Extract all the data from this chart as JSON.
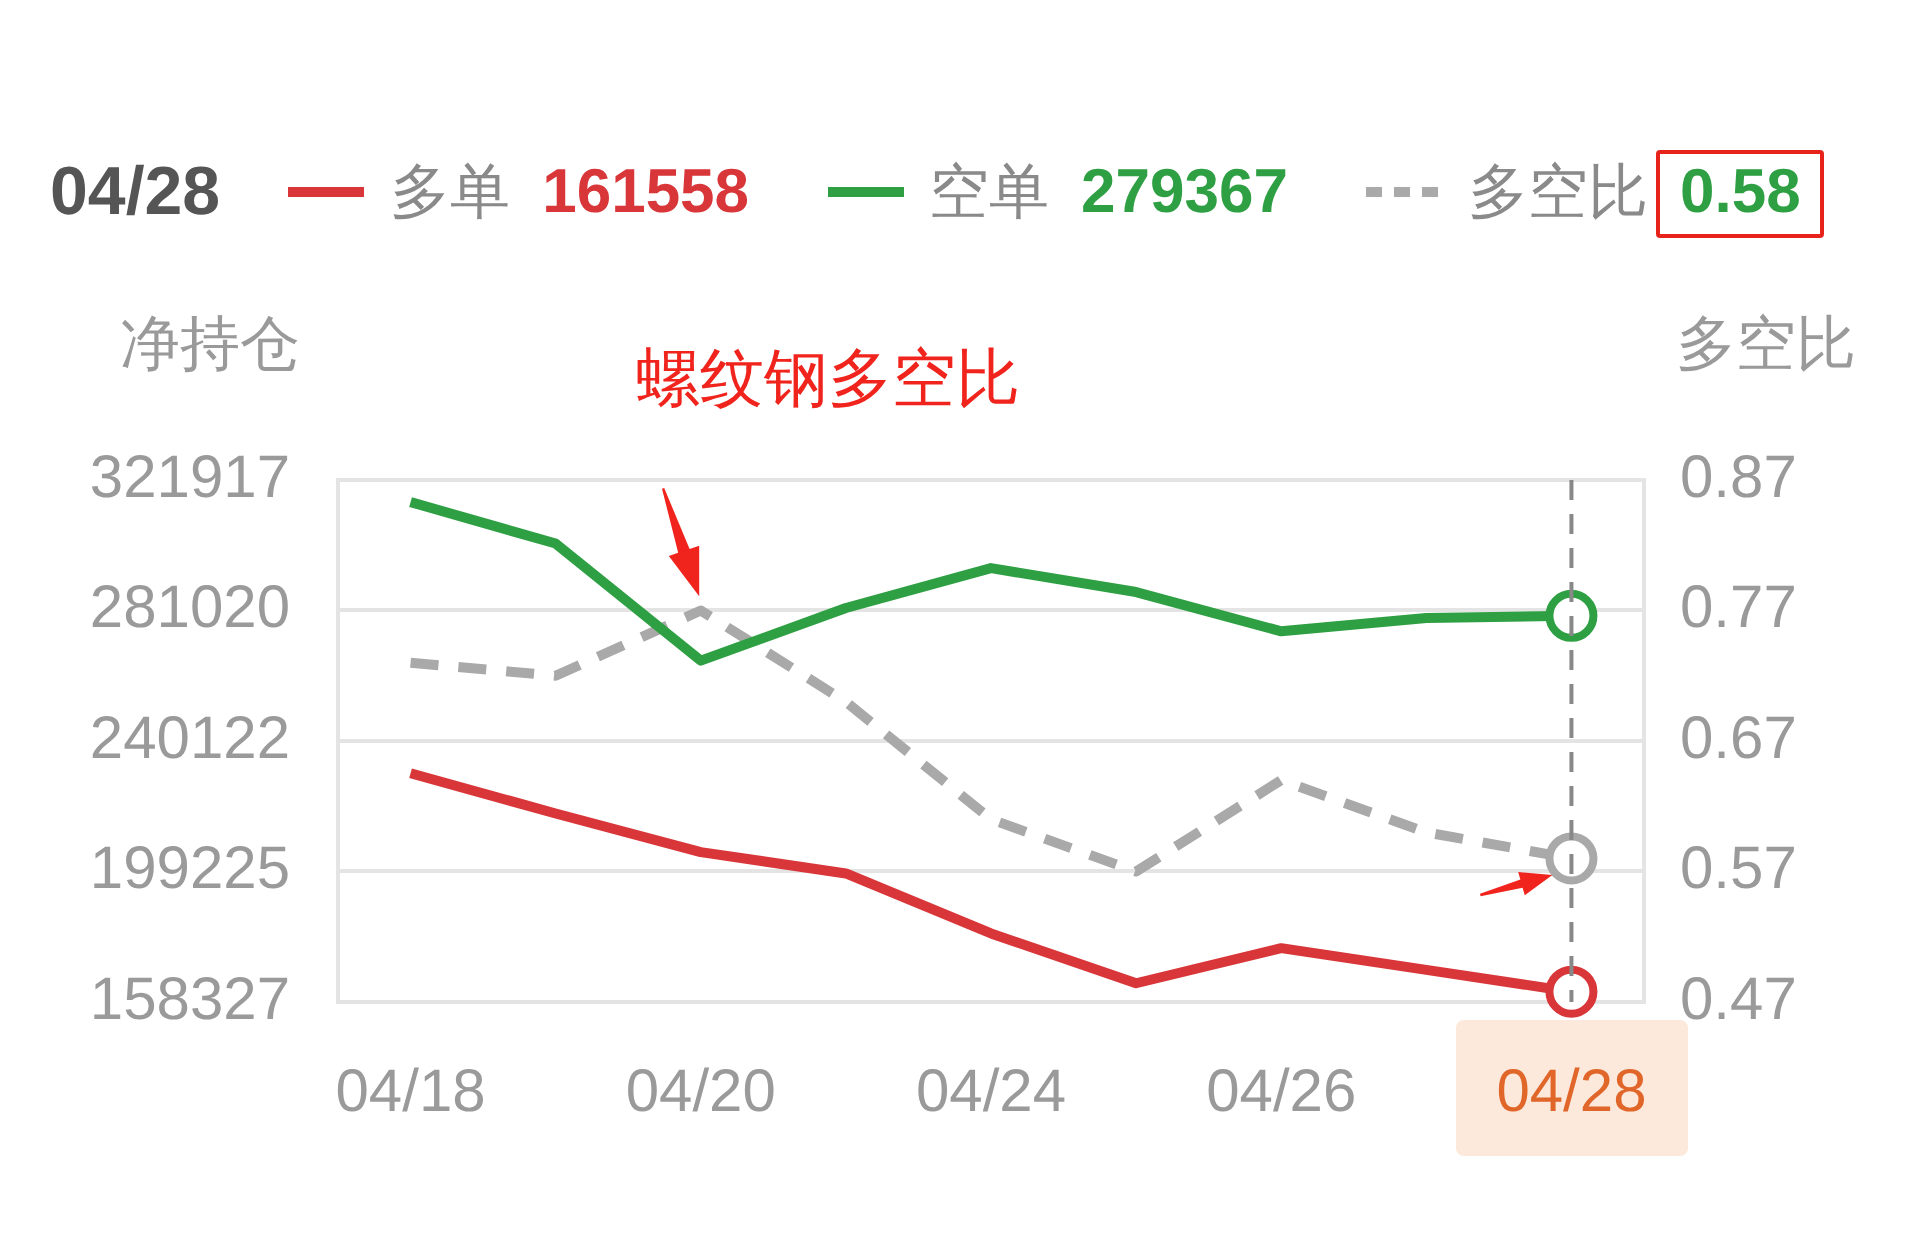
{
  "chart_data": {
    "type": "line",
    "legend_title": "04/28",
    "ylabel": "净持仓",
    "y2label": "多空比",
    "annotations": [
      "螺纹钢多空比",
      "161558",
      "279367",
      "0.58"
    ],
    "categories": [
      "04/18",
      null,
      "04/20",
      null,
      "04/24",
      null,
      "04/26",
      null,
      "04/28"
    ],
    "series": [
      {
        "name": "多单",
        "color": "#d9363a",
        "values": [
          230000,
          217400,
          205300,
          198600,
          179800,
          164200,
          175200,
          168400,
          161558
        ]
      },
      {
        "name": "空单",
        "color": "#2ea043",
        "values": [
          315000,
          302000,
          265300,
          281800,
          294300,
          286800,
          274500,
          278700,
          279367
        ]
      },
      {
        "name": "多空比",
        "color": "#a9a9a9",
        "axis": "y2",
        "line_style": "dashed",
        "values": [
          0.73,
          0.72,
          0.77,
          0.7,
          0.61,
          0.57,
          0.64,
          0.6,
          0.58
        ]
      }
    ],
    "ylim": [
      158327,
      321917
    ],
    "yticks": [
      158327,
      199225,
      240122,
      281020,
      321917
    ],
    "y2lim": [
      0.47,
      0.87
    ],
    "y2ticks": [
      0.47,
      0.57,
      0.67,
      0.77,
      0.87
    ],
    "ref_lines": [
      {
        "axis": "x",
        "value": "04/28",
        "color": "#888888",
        "line_style": "dashed"
      }
    ],
    "grid": "y",
    "legend": "top"
  }
}
